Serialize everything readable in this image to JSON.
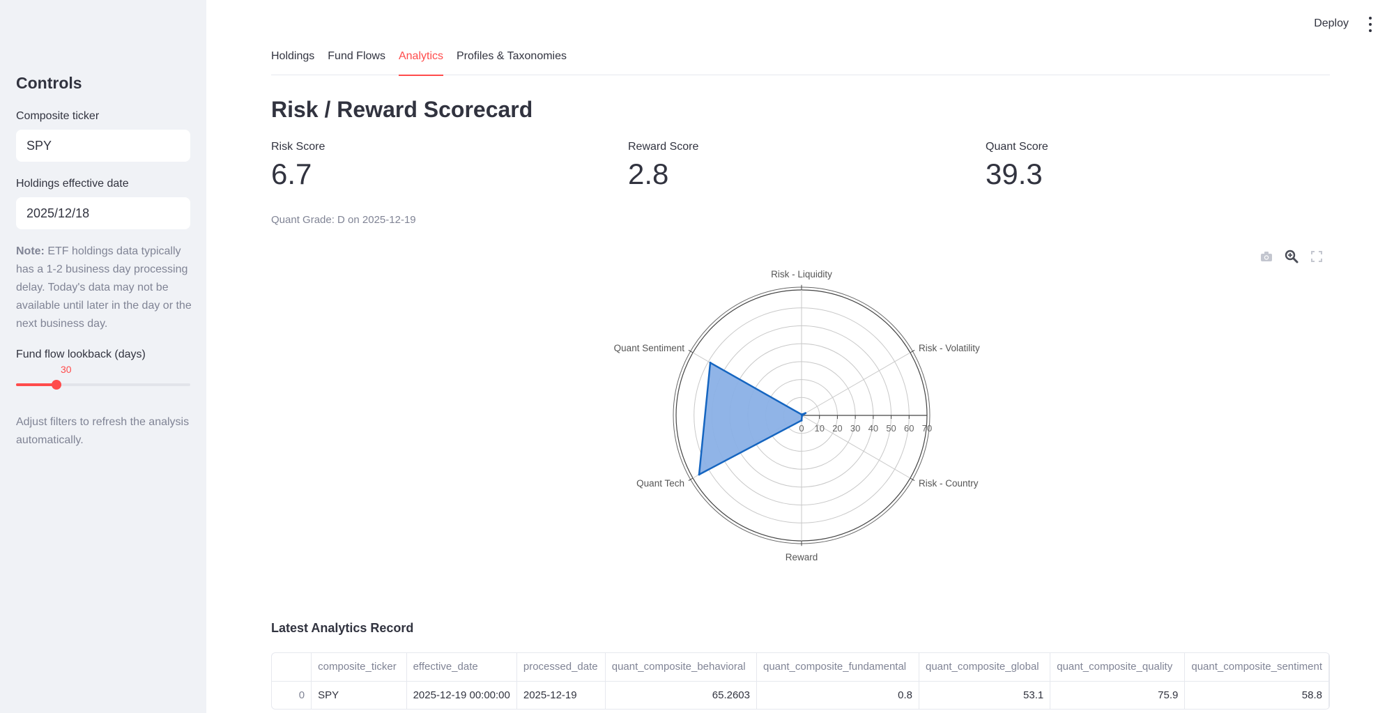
{
  "sidebar": {
    "heading": "Controls",
    "ticker_label": "Composite ticker",
    "ticker_value": "SPY",
    "date_label": "Holdings effective date",
    "date_value": "2025/12/18",
    "note_bold": "Note:",
    "note_text": " ETF holdings data typically has a 1-2 business day processing delay. Today's data may not be available until later in the day or the next business day.",
    "slider_label": "Fund flow lookback (days)",
    "slider_value": "30",
    "slider_fraction": 0.23,
    "hint": "Adjust filters to refresh the analysis automatically.",
    "accent_color": "#ff4b4b"
  },
  "topbar": {
    "deploy_label": "Deploy",
    "menu_icon": "kebab-menu-icon"
  },
  "tabs": [
    {
      "label": "Holdings",
      "active": false
    },
    {
      "label": "Fund Flows",
      "active": false
    },
    {
      "label": "Analytics",
      "active": true
    },
    {
      "label": "Profiles & Taxonomies",
      "active": false
    }
  ],
  "main": {
    "title": "Risk / Reward Scorecard",
    "metrics": [
      {
        "label": "Risk Score",
        "value": "6.7"
      },
      {
        "label": "Reward Score",
        "value": "2.8"
      },
      {
        "label": "Quant Score",
        "value": "39.3"
      }
    ],
    "caption": "Quant Grade: D on 2025-12-19",
    "modebar_icons": [
      "camera-icon",
      "zoom-icon",
      "fullscreen-icon"
    ]
  },
  "chart_data": {
    "type": "radar",
    "categories": [
      "Risk - Liquidity",
      "Risk - Volatility",
      "Risk - Country",
      "Reward",
      "Quant Tech",
      "Quant Sentiment"
    ],
    "values": [
      0.5,
      2.5,
      0.3,
      2.8,
      66,
      58.8
    ],
    "radial_ticks": [
      "0",
      "10",
      "20",
      "30",
      "40",
      "50",
      "60",
      "70"
    ],
    "range": [
      0,
      70
    ],
    "fill_color": "#8ab0e6",
    "line_color": "#1565c0"
  },
  "table": {
    "title": "Latest Analytics Record",
    "columns": [
      "",
      "composite_ticker",
      "effective_date",
      "processed_date",
      "quant_composite_behavioral",
      "quant_composite_fundamental",
      "quant_composite_global",
      "quant_composite_quality",
      "quant_composite_sentiment"
    ],
    "rows": [
      [
        "0",
        "SPY",
        "2025-12-19 00:00:00",
        "2025-12-19",
        "65.2603",
        "0.8",
        "53.1",
        "75.9",
        "58.8"
      ]
    ]
  }
}
